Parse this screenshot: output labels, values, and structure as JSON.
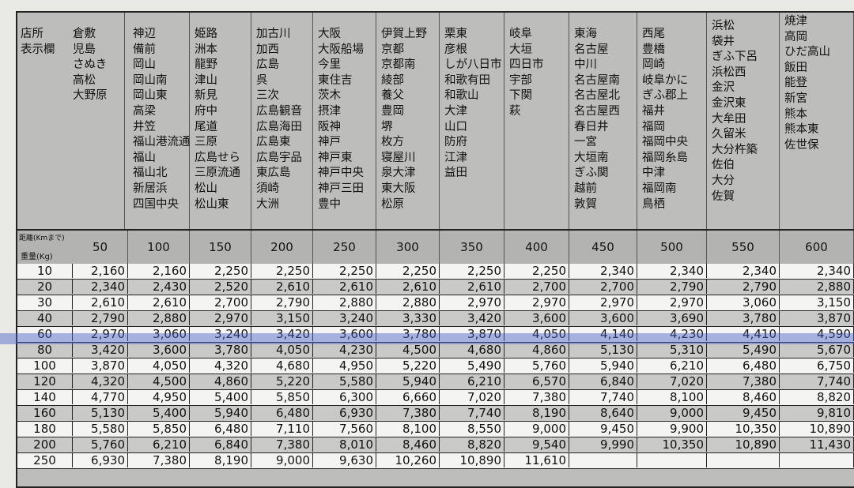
{
  "header_label": [
    "店所",
    "表示欄"
  ],
  "distance_header": "距離(Kmまで)",
  "weight_header": "重量(Kg)",
  "columns": [
    {
      "distance": "50",
      "stores": [
        "倉敷",
        "児島",
        "さぬき",
        "高松",
        "大野原"
      ]
    },
    {
      "distance": "100",
      "stores": [
        "神辺",
        "備前",
        "岡山",
        "岡山南",
        "岡山東",
        "高梁",
        "井笠",
        "福山港流通",
        "福山",
        "福山北",
        "新居浜",
        "四国中央"
      ]
    },
    {
      "distance": "150",
      "stores": [
        "姫路",
        "洲本",
        "龍野",
        "津山",
        "新見",
        "府中",
        "尾道",
        "三原",
        "広島せら",
        "三原流通",
        "松山",
        "松山東"
      ]
    },
    {
      "distance": "200",
      "stores": [
        "加古川",
        "加西",
        "広島",
        "呉",
        "三次",
        "広島観音",
        "広島海田",
        "広島東",
        "広島宇品",
        "東広島",
        "須崎",
        "大洲"
      ]
    },
    {
      "distance": "250",
      "stores": [
        "大阪",
        "大阪船場",
        "今里",
        "東住吉",
        "茨木",
        "摂津",
        "阪神",
        "神戸",
        "神戸東",
        "神戸中央",
        "神戸三田",
        "豊中"
      ]
    },
    {
      "distance": "300",
      "stores": [
        "伊賀上野",
        "京都",
        "京都南",
        "綾部",
        "養父",
        "豊岡",
        "堺",
        "枚方",
        "寝屋川",
        "泉大津",
        "東大阪",
        "松原"
      ]
    },
    {
      "distance": "350",
      "stores": [
        "栗東",
        "彦根",
        "しが八日市",
        "和歌有田",
        "和歌山",
        "大津",
        "山口",
        "防府",
        "江津",
        "益田"
      ]
    },
    {
      "distance": "400",
      "stores": [
        "岐阜",
        "大垣",
        "四日市",
        "宇部",
        "下関",
        "萩"
      ]
    },
    {
      "distance": "450",
      "stores": [
        "東海",
        "名古屋",
        "中川",
        "名古屋南",
        "名古屋北",
        "名古屋西",
        "春日井",
        "一宮",
        "大垣南",
        "ぎふ関",
        "越前",
        "敦賀"
      ]
    },
    {
      "distance": "500",
      "stores": [
        "西尾",
        "豊橋",
        "岡崎",
        "岐阜かに",
        "ぎふ郡上",
        "福井",
        "福岡",
        "福岡中央",
        "福岡糸島",
        "中津",
        "福岡南",
        "鳥栖"
      ]
    },
    {
      "distance": "550",
      "stores": [
        "浜松",
        "袋井",
        "ぎふ下呂",
        "浜松西",
        "金沢",
        "金沢東",
        "大牟田",
        "久留米",
        "大分杵築",
        "佐伯",
        "大分",
        "佐賀"
      ]
    },
    {
      "distance": "600",
      "stores": [
        "焼津",
        "高岡",
        "ひだ高山",
        "飯田",
        "能登",
        "新宮",
        "熊本",
        "熊本東",
        "佐世保"
      ]
    }
  ],
  "rows": [
    {
      "weight": "10",
      "prices": [
        "2,160",
        "2,160",
        "2,250",
        "2,250",
        "2,250",
        "2,250",
        "2,250",
        "2,250",
        "2,340",
        "2,340",
        "2,340",
        "2,340"
      ]
    },
    {
      "weight": "20",
      "prices": [
        "2,340",
        "2,430",
        "2,520",
        "2,610",
        "2,610",
        "2,610",
        "2,610",
        "2,700",
        "2,700",
        "2,790",
        "2,790",
        "2,880"
      ]
    },
    {
      "weight": "30",
      "prices": [
        "2,610",
        "2,610",
        "2,700",
        "2,790",
        "2,880",
        "2,880",
        "2,970",
        "2,970",
        "2,970",
        "2,970",
        "3,060",
        "3,150"
      ]
    },
    {
      "weight": "40",
      "prices": [
        "2,790",
        "2,880",
        "2,970",
        "3,150",
        "3,240",
        "3,330",
        "3,420",
        "3,600",
        "3,600",
        "3,690",
        "3,780",
        "3,870"
      ]
    },
    {
      "weight": "60",
      "prices": [
        "2,970",
        "3,060",
        "3,240",
        "3,420",
        "3,600",
        "3,780",
        "3,870",
        "4,050",
        "4,140",
        "4,230",
        "4,410",
        "4,590"
      ]
    },
    {
      "weight": "80",
      "prices": [
        "3,420",
        "3,600",
        "3,780",
        "4,050",
        "4,230",
        "4,500",
        "4,680",
        "4,860",
        "5,130",
        "5,310",
        "5,490",
        "5,670"
      ],
      "highlighted": true
    },
    {
      "weight": "100",
      "prices": [
        "3,870",
        "4,050",
        "4,320",
        "4,680",
        "4,950",
        "5,220",
        "5,490",
        "5,760",
        "5,940",
        "6,210",
        "6,480",
        "6,750"
      ]
    },
    {
      "weight": "120",
      "prices": [
        "4,320",
        "4,500",
        "4,860",
        "5,220",
        "5,580",
        "5,940",
        "6,210",
        "6,570",
        "6,840",
        "7,020",
        "7,380",
        "7,740"
      ]
    },
    {
      "weight": "140",
      "prices": [
        "4,770",
        "4,950",
        "5,400",
        "5,850",
        "6,300",
        "6,660",
        "7,020",
        "7,380",
        "7,740",
        "8,100",
        "8,460",
        "8,820"
      ]
    },
    {
      "weight": "160",
      "prices": [
        "5,130",
        "5,400",
        "5,940",
        "6,480",
        "6,930",
        "7,380",
        "7,740",
        "8,190",
        "8,640",
        "9,000",
        "9,450",
        "9,810"
      ]
    },
    {
      "weight": "180",
      "prices": [
        "5,580",
        "5,850",
        "6,480",
        "7,110",
        "7,560",
        "8,100",
        "8,550",
        "9,000",
        "9,450",
        "9,900",
        "10,350",
        "10,890"
      ]
    },
    {
      "weight": "200",
      "prices": [
        "5,760",
        "6,210",
        "6,840",
        "7,380",
        "8,010",
        "8,460",
        "8,820",
        "9,540",
        "9,990",
        "10,350",
        "10,890",
        "11,430"
      ]
    },
    {
      "weight": "250",
      "prices": [
        "6,930",
        "7,380",
        "8,190",
        "9,000",
        "9,630",
        "10,260",
        "10,890",
        "11,610",
        "",
        "",
        "",
        ""
      ]
    }
  ],
  "highlight_color": "#465fc8"
}
